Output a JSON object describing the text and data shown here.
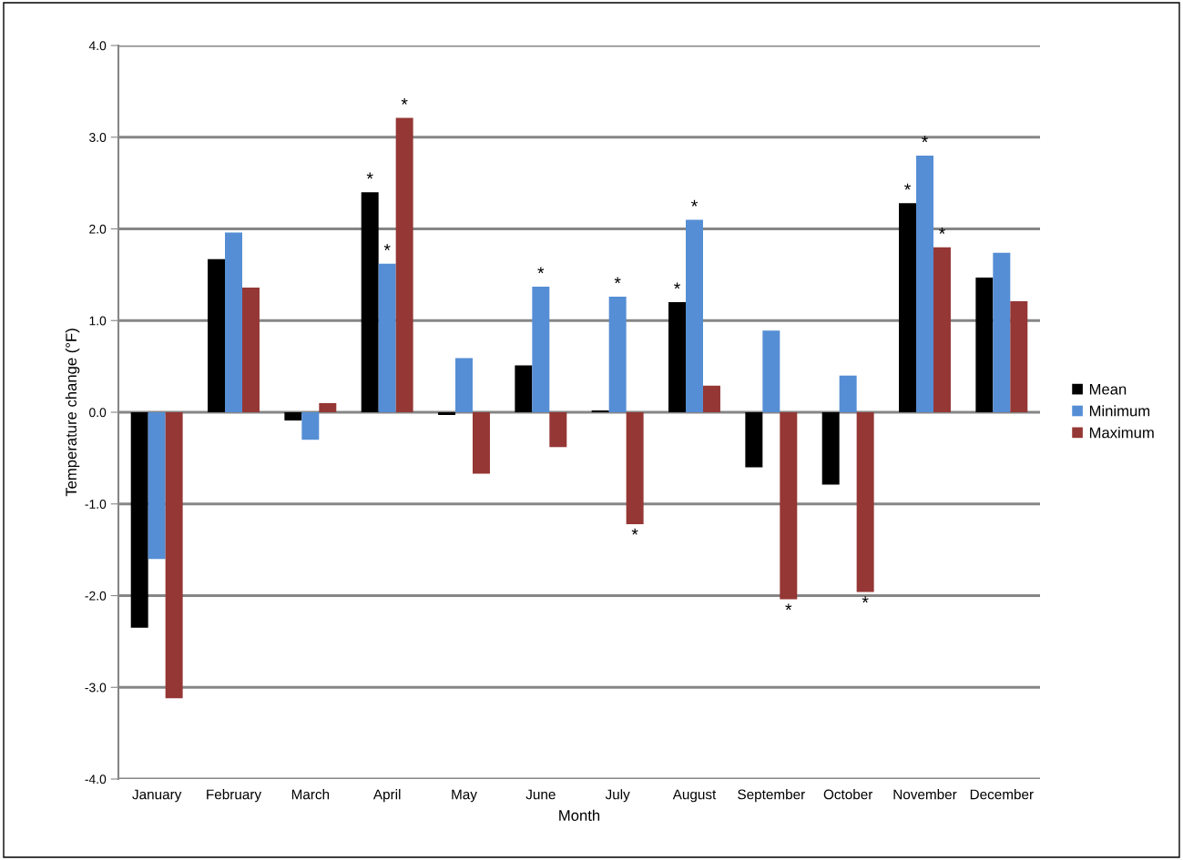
{
  "chart_data": {
    "type": "bar",
    "xlabel": "Month",
    "ylabel": "Temperature change (°F)",
    "categories": [
      "January",
      "February",
      "March",
      "April",
      "May",
      "June",
      "July",
      "August",
      "September",
      "October",
      "November",
      "December"
    ],
    "series": [
      {
        "name": "Mean",
        "color": "#000000",
        "values": [
          -2.35,
          1.67,
          -0.09,
          2.4,
          -0.03,
          0.51,
          0.02,
          1.2,
          -0.6,
          -0.79,
          2.28,
          1.47
        ],
        "value_labels": [
          null,
          null,
          null,
          "*",
          null,
          null,
          null,
          "*",
          null,
          null,
          "*",
          null
        ]
      },
      {
        "name": "Minimum",
        "color": "#558ed5",
        "values": [
          -1.6,
          1.96,
          -0.3,
          1.62,
          0.59,
          1.37,
          1.26,
          2.1,
          0.89,
          0.4,
          2.8,
          1.74
        ],
        "value_labels": [
          null,
          null,
          null,
          "*",
          null,
          "*",
          "*",
          "*",
          null,
          null,
          "*",
          null
        ]
      },
      {
        "name": "Maximum",
        "color": "#953735",
        "values": [
          -3.12,
          1.36,
          0.1,
          3.21,
          -0.67,
          -0.38,
          -1.22,
          0.29,
          -2.04,
          -1.96,
          1.8,
          1.21
        ],
        "value_labels": [
          null,
          null,
          null,
          "*",
          null,
          null,
          "*",
          null,
          "*",
          "*",
          "*",
          null
        ]
      }
    ],
    "ylim": [
      -4,
      4
    ],
    "yticks": [
      {
        "value": -4,
        "label": "-4.0"
      },
      {
        "value": -3,
        "label": "-3.0"
      },
      {
        "value": -2,
        "label": "-2.0"
      },
      {
        "value": -1,
        "label": "-1.0"
      },
      {
        "value": 0,
        "label": "0.0"
      },
      {
        "value": 1,
        "label": "1.0"
      },
      {
        "value": 2,
        "label": "2.0"
      },
      {
        "value": 3,
        "label": "3.0"
      },
      {
        "value": 4,
        "label": "4.0"
      }
    ],
    "grid": "y",
    "legend": "right"
  }
}
